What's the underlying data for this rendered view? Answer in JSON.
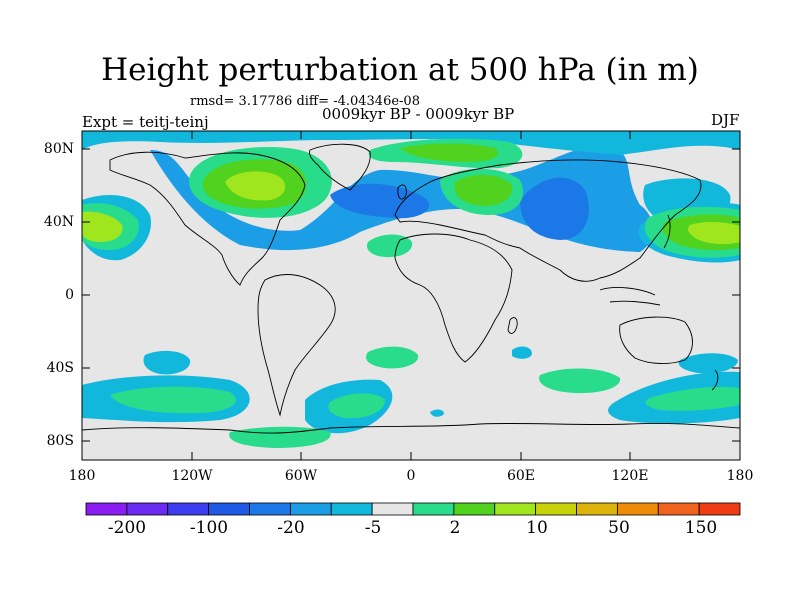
{
  "title": "Height perturbation at 500 hPa (in m)",
  "stats_line": "rmsd= 3.17786 diff= -4.04346e-08",
  "experiment_label": "Expt = teitj-teinj",
  "period_label": "0009kyr BP - 0009kyr BP",
  "season_label": "DJF",
  "map": {
    "projection": "cylindrical-equidistant",
    "lon_range": [
      -180,
      180
    ],
    "lat_range": [
      -90,
      90
    ],
    "lat_ticks": [
      "80N",
      "40N",
      "0",
      "40S",
      "80S"
    ],
    "lon_ticks": [
      "180",
      "120W",
      "60W",
      "0",
      "60E",
      "120E",
      "180"
    ],
    "background_color": "#e6e6e6"
  },
  "colorbar": {
    "colors": [
      "#8a1ef0",
      "#6a2af0",
      "#3c3ef0",
      "#1e5ae6",
      "#1c78e6",
      "#1c9ee6",
      "#12b8dc",
      "#e6e6e6",
      "#28dc8c",
      "#50d21e",
      "#a0e61e",
      "#c8d20a",
      "#dcb40a",
      "#ee8c0a",
      "#f0641e",
      "#f03c14"
    ],
    "labels": [
      "-200",
      "-100",
      "-20",
      "-5",
      "2",
      "10",
      "50",
      "150"
    ]
  },
  "chart_data": {
    "type": "heatmap",
    "title": "Height perturbation at 500 hPa (in m)",
    "variable": "500 hPa geopotential height perturbation",
    "units": "m",
    "regions": [
      {
        "name": "north-atlantic-low",
        "level": "-5 to -20"
      },
      {
        "name": "north-america-high",
        "level": "10 to 50"
      },
      {
        "name": "north-pacific-high",
        "level": "10 to 50"
      },
      {
        "name": "siberia-low",
        "level": "-5 to -20"
      },
      {
        "name": "europe-high",
        "level": "2 to 10"
      },
      {
        "name": "south-pacific-high",
        "level": "2 to 10"
      },
      {
        "name": "southern-ocean-low",
        "level": "-5"
      }
    ]
  }
}
